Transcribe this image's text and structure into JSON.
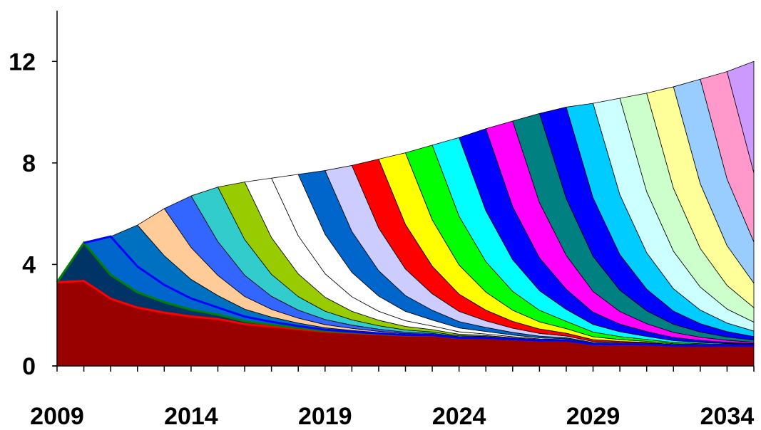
{
  "chart_data": {
    "type": "area",
    "stacked": true,
    "title": "",
    "xlabel": "",
    "ylabel": "",
    "x": [
      2009,
      2010,
      2011,
      2012,
      2013,
      2014,
      2015,
      2016,
      2017,
      2018,
      2019,
      2020,
      2021,
      2022,
      2023,
      2024,
      2025,
      2026,
      2027,
      2028,
      2029,
      2030,
      2031,
      2032,
      2033,
      2034,
      2035
    ],
    "xlim": [
      2009,
      2035
    ],
    "ylim": [
      0,
      14
    ],
    "x_ticks": [
      "2009",
      "2014",
      "2019",
      "2024",
      "2029",
      "2034"
    ],
    "y_ticks": [
      "0",
      "4",
      "8",
      "12"
    ],
    "grid": false,
    "legend": "none",
    "total": [
      3.3,
      4.85,
      5.1,
      5.55,
      6.2,
      6.7,
      7.05,
      7.25,
      7.4,
      7.55,
      7.7,
      7.9,
      8.15,
      8.4,
      8.7,
      9.0,
      9.35,
      9.65,
      9.95,
      10.2,
      10.35,
      10.55,
      10.75,
      11.0,
      11.3,
      11.6,
      12.0
    ],
    "base": [
      3.3,
      3.35,
      2.65,
      2.3,
      2.1,
      1.95,
      1.85,
      1.65,
      1.55,
      1.45,
      1.35,
      1.3,
      1.25,
      1.2,
      1.2,
      1.1,
      1.1,
      1.05,
      1.0,
      1.0,
      0.85,
      0.85,
      0.85,
      0.8,
      0.8,
      0.8,
      0.8
    ],
    "colors": [
      "#990000",
      "#003366",
      "#0066CC",
      "#0070C0",
      "#FFCC99",
      "#3366FF",
      "#33CCCC",
      "#99CC00",
      "#FFFFFF",
      "#FFFFFF",
      "#0066CC",
      "#CCCCFF",
      "#FF0000",
      "#FFFF00",
      "#00FF00",
      "#00FFFF",
      "#0000FF",
      "#FF00FF",
      "#008080",
      "#0000FF",
      "#00CCFF",
      "#CCFFFF",
      "#CCFFCC",
      "#FFFF99",
      "#99CCFF",
      "#FF99CC",
      "#CC99FF"
    ],
    "cohort_decay": [
      1.0,
      0.62,
      0.37,
      0.22,
      0.13,
      0.08
    ]
  }
}
